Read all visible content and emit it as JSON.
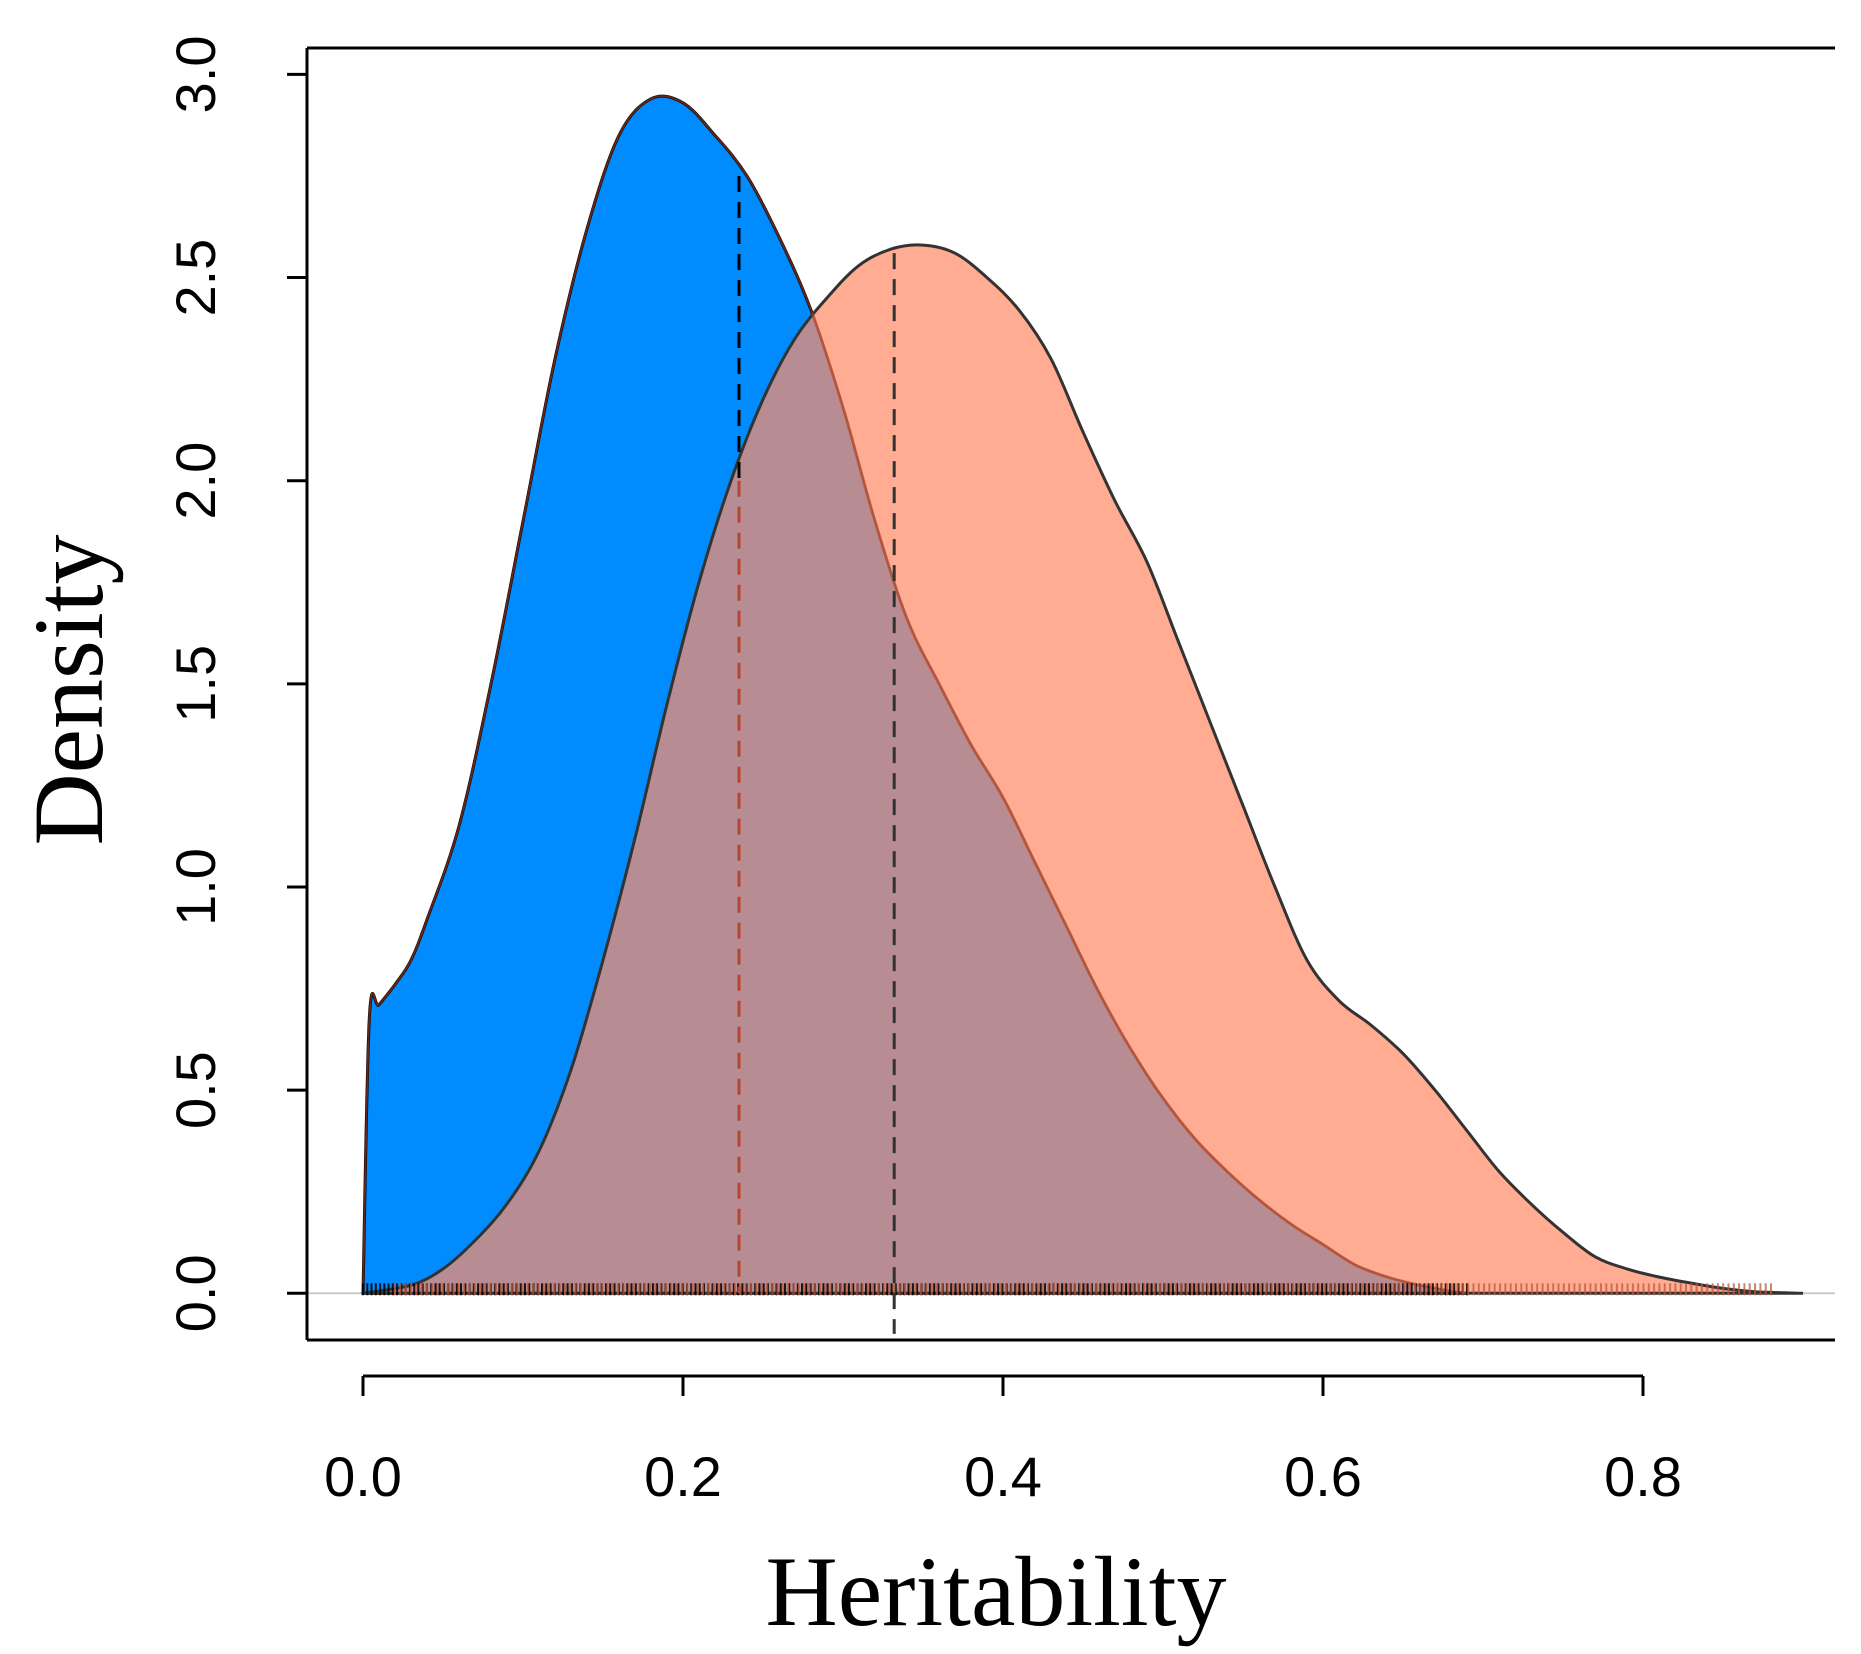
{
  "chart_data": {
    "type": "area",
    "title": "",
    "xlabel": "Heritability",
    "ylabel": "Density",
    "xlim": [
      -0.035,
      0.92
    ],
    "ylim": [
      -0.115,
      3.065
    ],
    "xticks": [
      0.0,
      0.2,
      0.4,
      0.6,
      0.8
    ],
    "xtick_labels": [
      "0.0",
      "0.2",
      "0.4",
      "0.6",
      "0.8"
    ],
    "yticks": [
      0.0,
      0.5,
      1.0,
      1.5,
      2.0,
      2.5,
      3.0
    ],
    "ytick_labels": [
      "0.0",
      "0.5",
      "1.0",
      "1.5",
      "2.0",
      "2.5",
      "3.0"
    ],
    "series": [
      {
        "name": "blue-density",
        "color": "#008CFF",
        "stroke": "#000000",
        "mean": 0.235,
        "points": [
          [
            0.0,
            0.0
          ],
          [
            0.004,
            0.68
          ],
          [
            0.01,
            0.71
          ],
          [
            0.02,
            0.76
          ],
          [
            0.03,
            0.82
          ],
          [
            0.04,
            0.92
          ],
          [
            0.06,
            1.15
          ],
          [
            0.08,
            1.5
          ],
          [
            0.1,
            1.9
          ],
          [
            0.12,
            2.3
          ],
          [
            0.14,
            2.62
          ],
          [
            0.16,
            2.85
          ],
          [
            0.18,
            2.94
          ],
          [
            0.2,
            2.93
          ],
          [
            0.22,
            2.85
          ],
          [
            0.24,
            2.75
          ],
          [
            0.26,
            2.6
          ],
          [
            0.28,
            2.42
          ],
          [
            0.3,
            2.18
          ],
          [
            0.32,
            1.9
          ],
          [
            0.34,
            1.66
          ],
          [
            0.36,
            1.5
          ],
          [
            0.38,
            1.35
          ],
          [
            0.4,
            1.22
          ],
          [
            0.42,
            1.06
          ],
          [
            0.44,
            0.9
          ],
          [
            0.46,
            0.74
          ],
          [
            0.48,
            0.6
          ],
          [
            0.5,
            0.48
          ],
          [
            0.52,
            0.38
          ],
          [
            0.54,
            0.3
          ],
          [
            0.56,
            0.23
          ],
          [
            0.58,
            0.17
          ],
          [
            0.6,
            0.12
          ],
          [
            0.62,
            0.07
          ],
          [
            0.64,
            0.04
          ],
          [
            0.66,
            0.02
          ],
          [
            0.68,
            0.005
          ],
          [
            0.69,
            0.0
          ]
        ]
      },
      {
        "name": "orange-density",
        "color": "#FF8C69",
        "stroke": "#333333",
        "mean": 0.332,
        "points": [
          [
            0.0,
            0.0
          ],
          [
            0.03,
            0.02
          ],
          [
            0.05,
            0.06
          ],
          [
            0.07,
            0.13
          ],
          [
            0.09,
            0.22
          ],
          [
            0.11,
            0.35
          ],
          [
            0.13,
            0.55
          ],
          [
            0.15,
            0.82
          ],
          [
            0.17,
            1.12
          ],
          [
            0.19,
            1.45
          ],
          [
            0.21,
            1.75
          ],
          [
            0.23,
            2.0
          ],
          [
            0.25,
            2.2
          ],
          [
            0.27,
            2.35
          ],
          [
            0.29,
            2.45
          ],
          [
            0.31,
            2.53
          ],
          [
            0.33,
            2.57
          ],
          [
            0.35,
            2.58
          ],
          [
            0.37,
            2.56
          ],
          [
            0.39,
            2.5
          ],
          [
            0.41,
            2.42
          ],
          [
            0.43,
            2.3
          ],
          [
            0.45,
            2.12
          ],
          [
            0.47,
            1.95
          ],
          [
            0.49,
            1.8
          ],
          [
            0.51,
            1.6
          ],
          [
            0.53,
            1.4
          ],
          [
            0.55,
            1.2
          ],
          [
            0.57,
            1.0
          ],
          [
            0.59,
            0.82
          ],
          [
            0.61,
            0.72
          ],
          [
            0.63,
            0.66
          ],
          [
            0.65,
            0.59
          ],
          [
            0.67,
            0.5
          ],
          [
            0.69,
            0.4
          ],
          [
            0.71,
            0.3
          ],
          [
            0.73,
            0.22
          ],
          [
            0.75,
            0.15
          ],
          [
            0.77,
            0.09
          ],
          [
            0.79,
            0.06
          ],
          [
            0.81,
            0.04
          ],
          [
            0.83,
            0.025
          ],
          [
            0.85,
            0.012
          ],
          [
            0.87,
            0.004
          ],
          [
            0.9,
            0.0
          ]
        ]
      }
    ],
    "rug": [
      {
        "name": "blue-rug",
        "color": "#000000",
        "range": [
          0.0,
          0.69
        ]
      },
      {
        "name": "orange-rug",
        "color": "#C05A3C",
        "range": [
          0.02,
          0.88
        ]
      }
    ]
  }
}
